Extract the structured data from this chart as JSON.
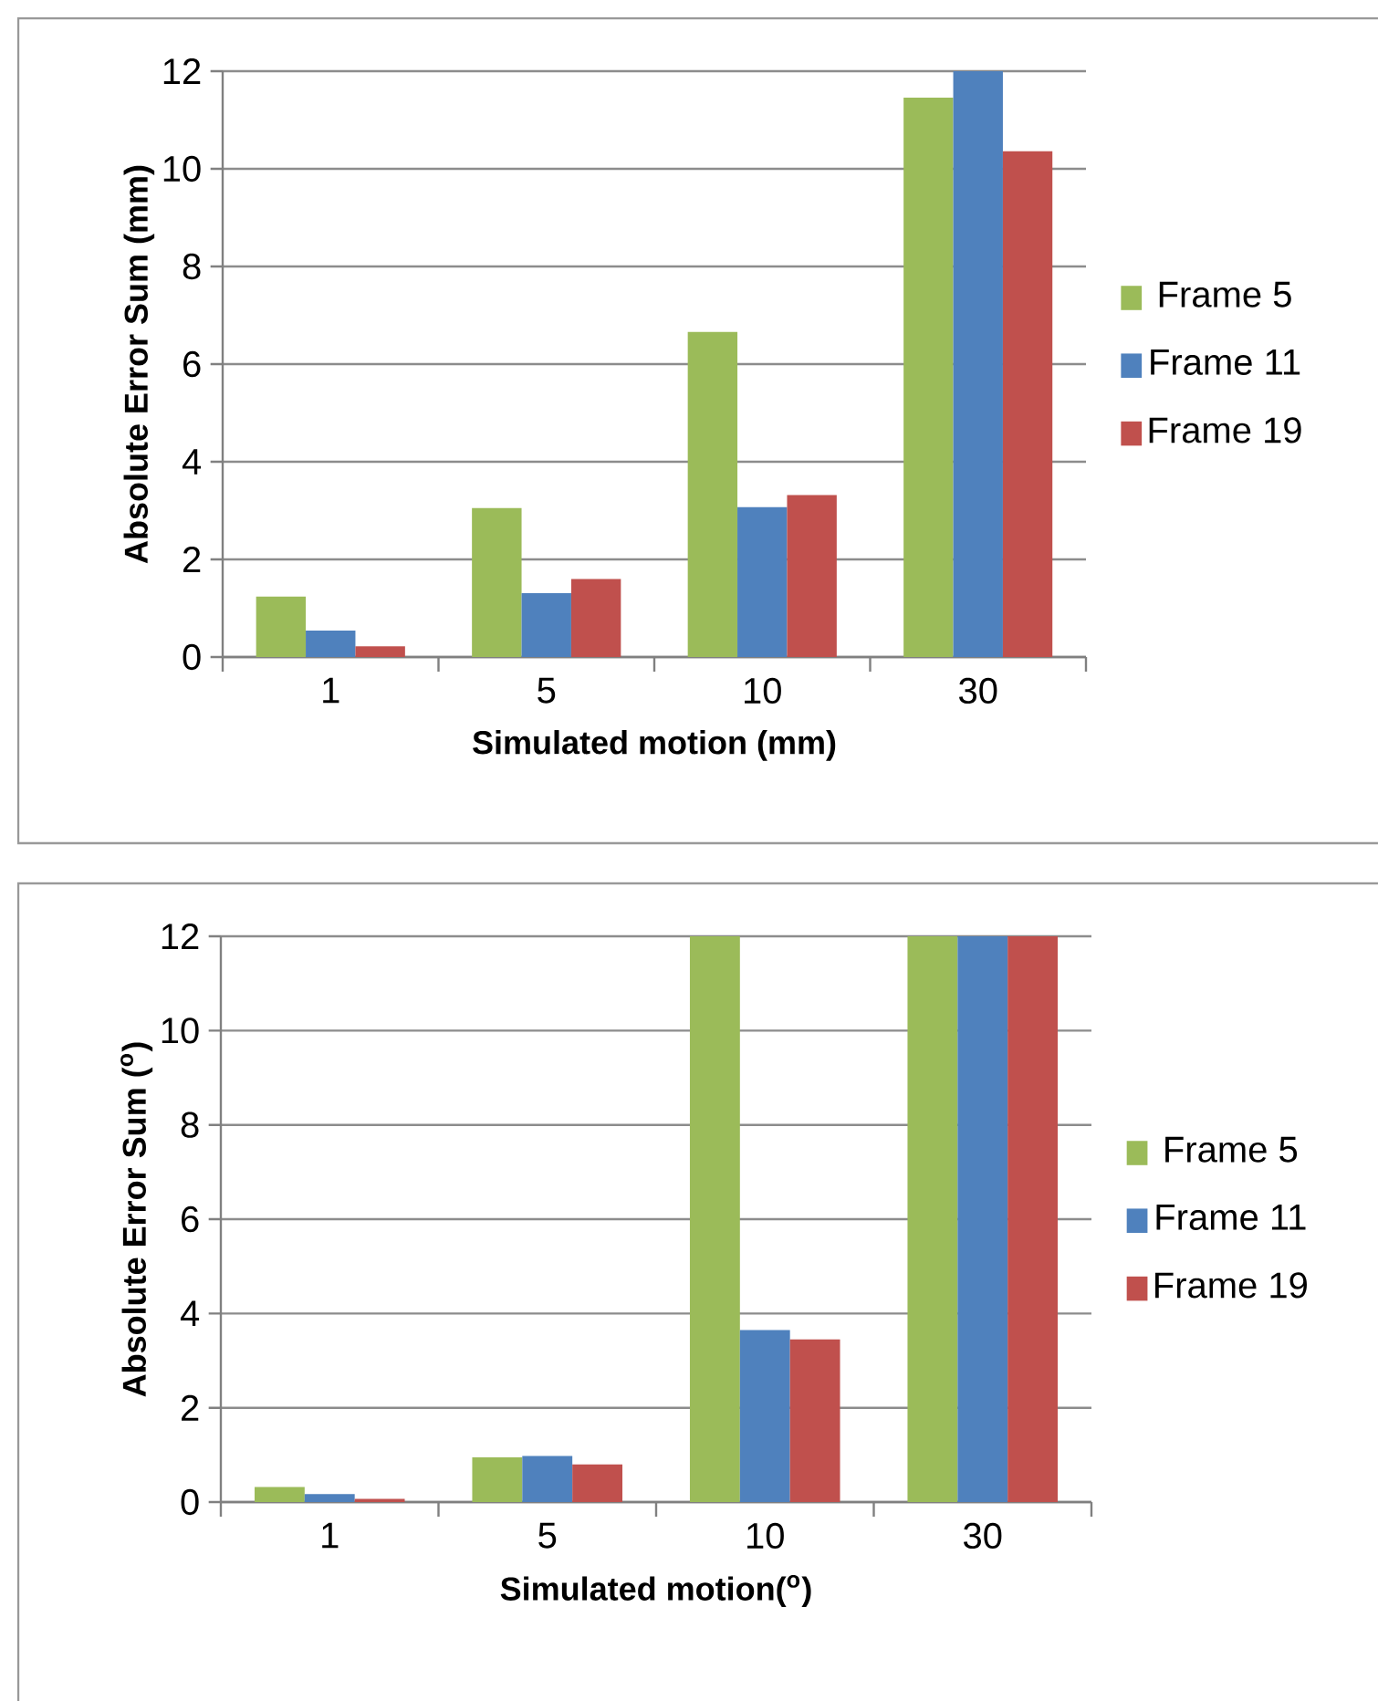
{
  "chart_data": [
    {
      "type": "bar",
      "categories": [
        "1",
        "5",
        "10",
        "30"
      ],
      "xlabel": "Simulated motion (mm)",
      "ylabel": "Absolute Error Sum (mm)",
      "ylim": [
        0,
        12
      ],
      "yticks": [
        0,
        2,
        4,
        6,
        8,
        10,
        12
      ],
      "grid": "y",
      "legend": "right",
      "series": [
        {
          "name": "Frame 5",
          "color": "#9bbb59",
          "values": [
            1.24,
            3.05,
            6.66,
            11.46
          ]
        },
        {
          "name": "Frame 11",
          "color": "#4f81bd",
          "values": [
            0.54,
            1.31,
            3.07,
            12
          ]
        },
        {
          "name": "Frame 19",
          "color": "#c0504d",
          "values": [
            0.22,
            1.6,
            3.32,
            10.36
          ]
        }
      ]
    },
    {
      "type": "bar",
      "categories": [
        "1",
        "5",
        "10",
        "30"
      ],
      "xlabel": "Simulated motion($^{o}$)",
      "ylabel": "Absolute Error Sum ($^{o}$)",
      "ylim": [
        0,
        12
      ],
      "yticks": [
        0,
        2,
        4,
        6,
        8,
        10,
        12
      ],
      "grid": "y",
      "legend": "right",
      "series": [
        {
          "name": "Frame 5",
          "color": "#9bbb59",
          "values": [
            0.32,
            0.95,
            12,
            12
          ]
        },
        {
          "name": "Frame 11",
          "color": "#4f81bd",
          "values": [
            0.17,
            0.98,
            3.65,
            12
          ]
        },
        {
          "name": "Frame 19",
          "color": "#c0504d",
          "values": [
            0.07,
            0.8,
            3.45,
            12
          ]
        }
      ]
    }
  ]
}
